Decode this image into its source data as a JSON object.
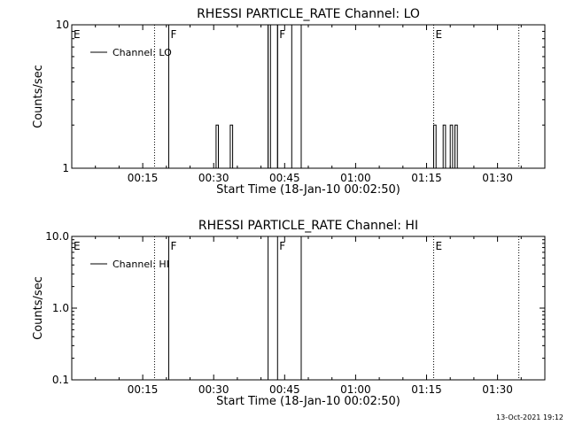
{
  "footer": {
    "timestamp": "13-Oct-2021 19:12"
  },
  "chart_data": [
    {
      "type": "line",
      "title": "RHESSI PARTICLE_RATE Channel: LO",
      "xlabel": "Start Time (18-Jan-10 00:02:50)",
      "ylabel": "Counts/sec",
      "yscale": "log",
      "xlim": [
        0,
        100
      ],
      "ylim": [
        1,
        10
      ],
      "xticks": [
        {
          "value": 15,
          "label": "00:15"
        },
        {
          "value": 30,
          "label": "00:30"
        },
        {
          "value": 45,
          "label": "00:45"
        },
        {
          "value": 60,
          "label": "01:00"
        },
        {
          "value": 75,
          "label": "01:15"
        },
        {
          "value": 90,
          "label": "01:30"
        }
      ],
      "yticks": [
        {
          "value": 1,
          "label": "1"
        },
        {
          "value": 10,
          "label": "10"
        }
      ],
      "legend": {
        "entry": "Channel: LO",
        "position": "top-left"
      },
      "series": [
        {
          "name": "Channel: LO",
          "x": [
            0,
            20.5,
            20.5,
            30.5,
            30.5,
            31,
            31,
            33.5,
            33.5,
            34,
            34,
            41.5,
            41.5,
            42,
            42,
            43.5,
            43.5,
            46.5,
            46.5,
            76.5,
            76.5,
            77,
            77,
            78.5,
            78.5,
            79,
            79,
            80,
            80,
            80.5,
            80.5,
            81,
            81,
            81.5,
            81.5,
            100
          ],
          "y": [
            1,
            1,
            1,
            1,
            2,
            2,
            1,
            1,
            2,
            2,
            1,
            1,
            10,
            10,
            1,
            1,
            10,
            10,
            1,
            1,
            2,
            2,
            1,
            1,
            2,
            2,
            1,
            1,
            2,
            2,
            1,
            1,
            2,
            2,
            1,
            1
          ]
        }
      ],
      "markers": [
        {
          "x": 0,
          "label": "E",
          "style": "dotted"
        },
        {
          "x": 17.5,
          "label": "",
          "style": "dotted"
        },
        {
          "x": 20.5,
          "label": "F",
          "style": "solid"
        },
        {
          "x": 41.5,
          "label": "",
          "style": "solid"
        },
        {
          "x": 43.5,
          "label": "F",
          "style": "solid"
        },
        {
          "x": 48.5,
          "label": "",
          "style": "solid"
        },
        {
          "x": 76.5,
          "label": "E",
          "style": "dotted"
        },
        {
          "x": 94.5,
          "label": "",
          "style": "dotted"
        }
      ]
    },
    {
      "type": "line",
      "title": "RHESSI PARTICLE_RATE Channel: HI",
      "xlabel": "Start Time (18-Jan-10 00:02:50)",
      "ylabel": "Counts/sec",
      "yscale": "log",
      "xlim": [
        0,
        100
      ],
      "ylim": [
        0.1,
        10
      ],
      "xticks": [
        {
          "value": 15,
          "label": "00:15"
        },
        {
          "value": 30,
          "label": "00:30"
        },
        {
          "value": 45,
          "label": "00:45"
        },
        {
          "value": 60,
          "label": "01:00"
        },
        {
          "value": 75,
          "label": "01:15"
        },
        {
          "value": 90,
          "label": "01:30"
        }
      ],
      "yticks": [
        {
          "value": 0.1,
          "label": "0.1"
        },
        {
          "value": 1,
          "label": "1.0"
        },
        {
          "value": 10,
          "label": "10.0"
        }
      ],
      "legend": {
        "entry": "Channel: HI",
        "position": "top-left"
      },
      "series": [
        {
          "name": "Channel: HI",
          "x": [
            0,
            100
          ],
          "y": [
            0.1,
            0.1
          ]
        }
      ],
      "markers": [
        {
          "x": 0,
          "label": "E",
          "style": "dotted"
        },
        {
          "x": 17.5,
          "label": "",
          "style": "dotted"
        },
        {
          "x": 20.5,
          "label": "F",
          "style": "solid"
        },
        {
          "x": 41.5,
          "label": "",
          "style": "solid"
        },
        {
          "x": 43.5,
          "label": "F",
          "style": "solid"
        },
        {
          "x": 48.5,
          "label": "",
          "style": "solid"
        },
        {
          "x": 76.5,
          "label": "E",
          "style": "dotted"
        },
        {
          "x": 94.5,
          "label": "",
          "style": "dotted"
        }
      ]
    }
  ]
}
